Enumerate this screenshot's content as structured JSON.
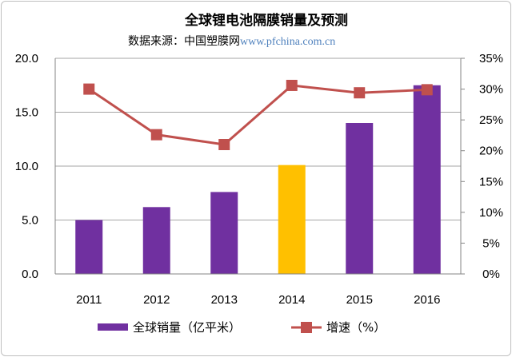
{
  "chart_data": {
    "type": "bar+line",
    "title": "全球锂电池隔膜销量及预测",
    "subtitle_prefix": "数据来源：中国塑膜网",
    "subtitle_web": "www.pfchina.com.cn",
    "categories": [
      "2011",
      "2012",
      "2013",
      "2014",
      "2015",
      "2016"
    ],
    "series": [
      {
        "name": "全球销量（亿平米）",
        "type": "bar",
        "axis": "left",
        "values": [
          5.0,
          6.2,
          7.6,
          10.1,
          14.0,
          17.5
        ],
        "color": "#7030a0",
        "highlight": {
          "index": 3,
          "color": "#ffc000"
        }
      },
      {
        "name": "增速（%）",
        "type": "line",
        "axis": "right",
        "values": [
          30.0,
          22.6,
          21.0,
          30.6,
          29.4,
          29.9
        ],
        "color": "#c0504d"
      }
    ],
    "left_axis": {
      "ylim": [
        0,
        20
      ],
      "ticks": [
        "0.0",
        "5.0",
        "10.0",
        "15.0",
        "20.0"
      ]
    },
    "right_axis": {
      "ylim": [
        0,
        35
      ],
      "ticks": [
        "0%",
        "5%",
        "10%",
        "15%",
        "20%",
        "25%",
        "30%",
        "35%"
      ]
    },
    "grid": true,
    "legend_position": "bottom"
  }
}
